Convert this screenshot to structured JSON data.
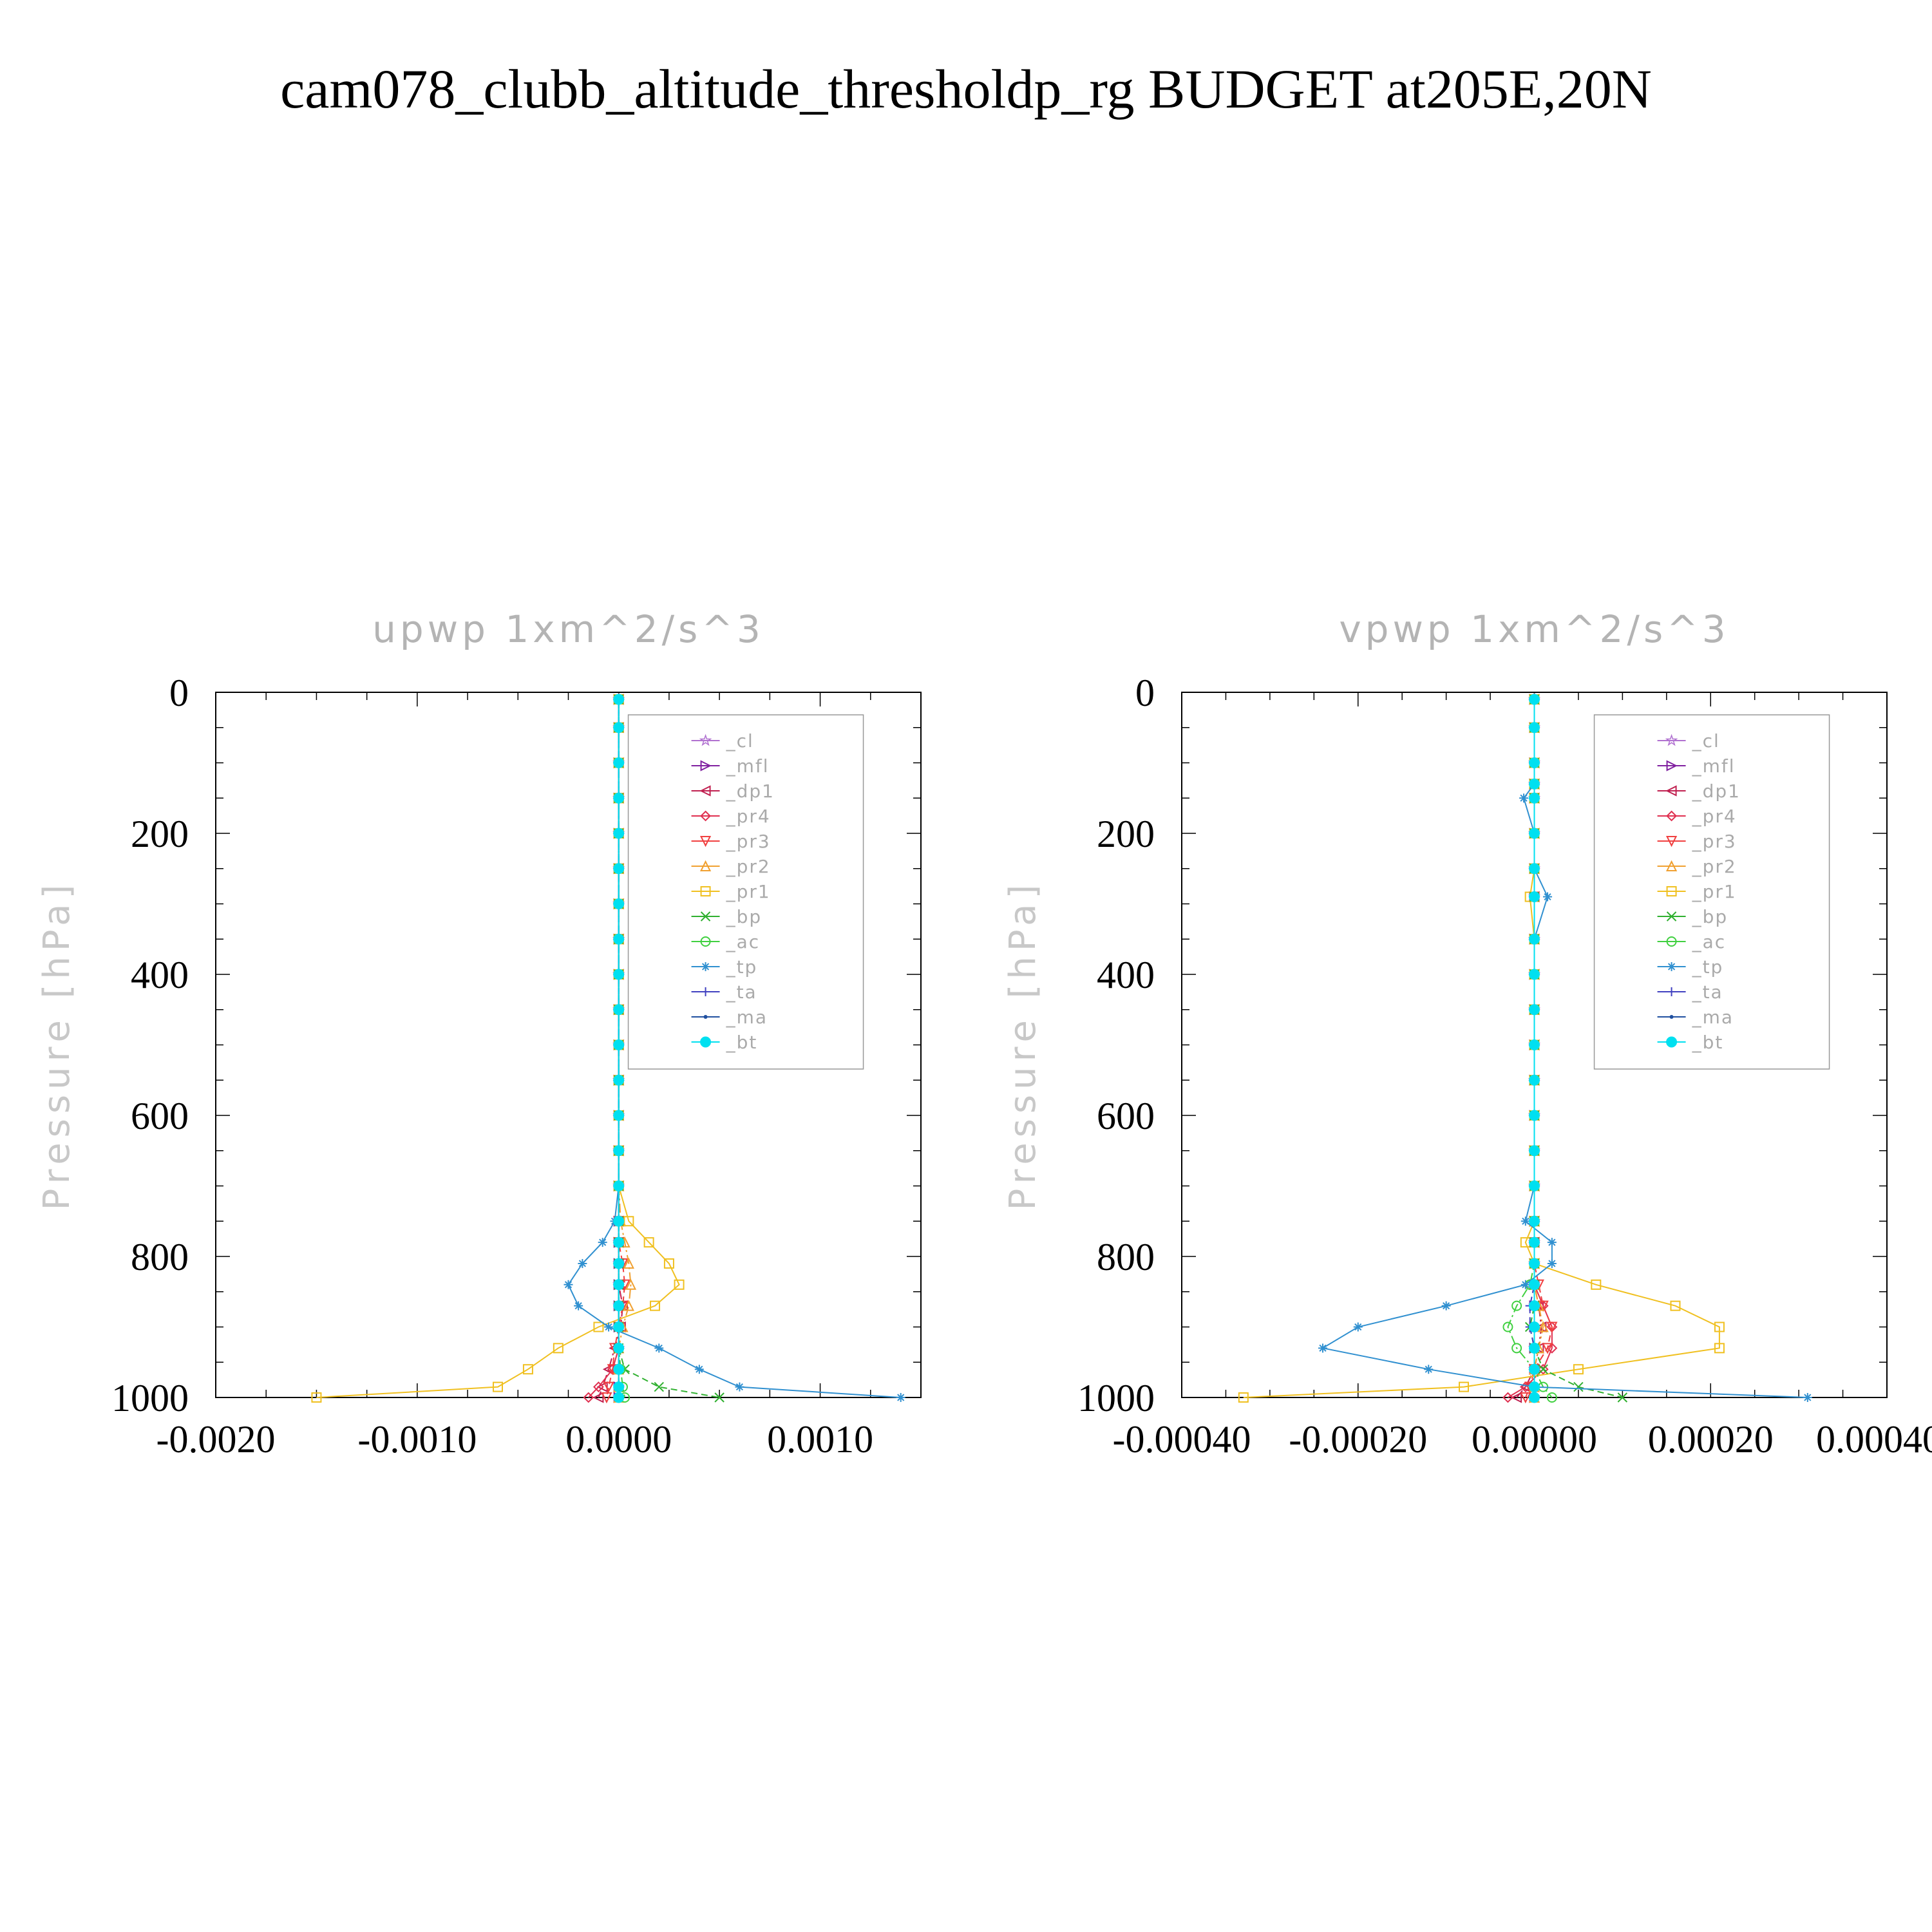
{
  "title": "cam078_clubb_altitude_thresholdp_rg  BUDGET at205E,20N",
  "legend_entries": [
    {
      "name": "_cl",
      "color": "#b070d0",
      "marker": "star"
    },
    {
      "name": "_mfl",
      "color": "#8020a0",
      "marker": "tri-right"
    },
    {
      "name": "_dp1",
      "color": "#c02050",
      "marker": "tri-left"
    },
    {
      "name": "_pr4",
      "color": "#e03050",
      "marker": "diamond"
    },
    {
      "name": "_pr3",
      "color": "#f04040",
      "marker": "tri-down"
    },
    {
      "name": "_pr2",
      "color": "#f0a030",
      "marker": "tri-up"
    },
    {
      "name": "_pr1",
      "color": "#f0c020",
      "marker": "square"
    },
    {
      "name": "_bp",
      "color": "#30b030",
      "marker": "x"
    },
    {
      "name": "_ac",
      "color": "#40d040",
      "marker": "circle"
    },
    {
      "name": "_tp",
      "color": "#3090d0",
      "marker": "asterisk"
    },
    {
      "name": "_ta",
      "color": "#4040c0",
      "marker": "plus"
    },
    {
      "name": "_ma",
      "color": "#2050a0",
      "marker": "dot"
    },
    {
      "name": "_bt",
      "color": "#00e0f0",
      "marker": "filled-circle"
    }
  ],
  "chart_data": [
    {
      "type": "line",
      "title": "upwp   1xm^2/s^3",
      "ylabel": "Pressure [hPa]",
      "xlim": [
        -0.002,
        0.0015
      ],
      "ylim": [
        1000,
        0
      ],
      "xticks": [
        -0.002,
        -0.001,
        0.0,
        0.001
      ],
      "xtick_labels": [
        "-0.0020",
        "-0.0010",
        "0.0000",
        "0.0010"
      ],
      "yticks": [
        0,
        200,
        400,
        600,
        800,
        1000
      ],
      "ytick_labels": [
        "0",
        "200",
        "400",
        "600",
        "800",
        "1000"
      ],
      "legend": "top-right",
      "y": [
        10,
        50,
        100,
        150,
        200,
        250,
        300,
        350,
        400,
        450,
        500,
        550,
        600,
        650,
        700,
        750,
        780,
        810,
        840,
        870,
        900,
        930,
        960,
        985,
        1000
      ],
      "series": [
        {
          "name": "_cl",
          "values": [
            0,
            0,
            0,
            0,
            0,
            0,
            0,
            0,
            0,
            0,
            0,
            0,
            0,
            0,
            0,
            0,
            0,
            0,
            0,
            0,
            0,
            0,
            0,
            0,
            0
          ]
        },
        {
          "name": "_mfl",
          "values": [
            0,
            0,
            0,
            0,
            0,
            0,
            0,
            0,
            0,
            0,
            0,
            0,
            0,
            0,
            0,
            0,
            0,
            0,
            0,
            0,
            0,
            0,
            0,
            0,
            0
          ]
        },
        {
          "name": "_dp1",
          "values": [
            0,
            0,
            0,
            0,
            0,
            0,
            0,
            0,
            0,
            0,
            0,
            0,
            0,
            0,
            0,
            0,
            0,
            0,
            0,
            2e-05,
            1e-05,
            -2e-05,
            -5e-05,
            -8e-05,
            -0.0001
          ]
        },
        {
          "name": "_pr4",
          "values": [
            0,
            0,
            0,
            0,
            0,
            0,
            0,
            0,
            0,
            0,
            0,
            0,
            0,
            0,
            0,
            0,
            0,
            0,
            0,
            0,
            0,
            0,
            -3e-05,
            -0.0001,
            -0.00015
          ]
        },
        {
          "name": "_pr3",
          "values": [
            0,
            0,
            0,
            0,
            0,
            0,
            0,
            0,
            0,
            0,
            0,
            0,
            0,
            0,
            0,
            0,
            0,
            2e-05,
            3e-05,
            2e-05,
            0,
            -2e-05,
            -3e-05,
            -5e-05,
            -6e-05
          ]
        },
        {
          "name": "_pr2",
          "values": [
            0,
            0,
            0,
            0,
            0,
            0,
            0,
            0,
            0,
            0,
            0,
            0,
            0,
            0,
            0,
            1e-05,
            3e-05,
            5e-05,
            6e-05,
            5e-05,
            2e-05,
            0,
            0,
            0,
            0
          ]
        },
        {
          "name": "_pr1",
          "values": [
            0,
            0,
            0,
            0,
            0,
            0,
            0,
            0,
            0,
            0,
            0,
            0,
            0,
            0,
            0,
            5e-05,
            0.00015,
            0.00025,
            0.0003,
            0.00018,
            -0.0001,
            -0.0003,
            -0.00045,
            -0.0006,
            -0.0015
          ]
        },
        {
          "name": "_bp",
          "values": [
            0,
            0,
            0,
            0,
            0,
            0,
            0,
            0,
            0,
            0,
            0,
            0,
            0,
            0,
            0,
            0,
            0,
            0,
            0,
            0,
            0,
            0,
            3e-05,
            0.0002,
            0.0005
          ]
        },
        {
          "name": "_ac",
          "values": [
            0,
            0,
            0,
            0,
            0,
            0,
            0,
            0,
            0,
            0,
            0,
            0,
            0,
            0,
            0,
            0,
            0,
            0,
            0,
            0,
            0,
            0,
            1e-05,
            2e-05,
            3e-05
          ]
        },
        {
          "name": "_tp",
          "values": [
            0,
            0,
            0,
            0,
            0,
            0,
            0,
            0,
            0,
            0,
            0,
            0,
            0,
            0,
            0,
            -2e-05,
            -8e-05,
            -0.00018,
            -0.00025,
            -0.0002,
            -5e-05,
            0.0002,
            0.0004,
            0.0006,
            0.0014
          ]
        },
        {
          "name": "_ta",
          "values": [
            0,
            0,
            0,
            0,
            0,
            0,
            0,
            0,
            0,
            0,
            0,
            0,
            0,
            0,
            0,
            0,
            0,
            0,
            0,
            0,
            0,
            0,
            0,
            0,
            0
          ]
        },
        {
          "name": "_ma",
          "values": [
            0,
            0,
            0,
            0,
            0,
            0,
            0,
            0,
            0,
            0,
            0,
            0,
            0,
            0,
            0,
            0,
            0,
            0,
            0,
            0,
            0,
            0,
            0,
            0,
            0
          ]
        },
        {
          "name": "_bt",
          "values": [
            0,
            0,
            0,
            0,
            0,
            0,
            0,
            0,
            0,
            0,
            0,
            0,
            0,
            0,
            0,
            0,
            0,
            0,
            0,
            0,
            0,
            0,
            0,
            0,
            0
          ]
        }
      ]
    },
    {
      "type": "line",
      "title": "vpwp   1xm^2/s^3",
      "ylabel": "Pressure [hPa]",
      "xlim": [
        -0.0004,
        0.0004
      ],
      "ylim": [
        1000,
        0
      ],
      "xticks": [
        -0.0004,
        -0.0002,
        0.0,
        0.0002,
        0.0004
      ],
      "xtick_labels": [
        "-0.00040",
        "-0.00020",
        "0.00000",
        "0.00020",
        "0.00040"
      ],
      "yticks": [
        0,
        200,
        400,
        600,
        800,
        1000
      ],
      "ytick_labels": [
        "0",
        "200",
        "400",
        "600",
        "800",
        "1000"
      ],
      "legend": "top-right",
      "y": [
        10,
        50,
        100,
        130,
        150,
        200,
        250,
        290,
        350,
        400,
        450,
        500,
        550,
        600,
        650,
        700,
        750,
        780,
        810,
        840,
        870,
        900,
        930,
        960,
        985,
        1000
      ],
      "series": [
        {
          "name": "_cl",
          "values": [
            0,
            0,
            0,
            0,
            0,
            0,
            0,
            0,
            0,
            0,
            0,
            0,
            0,
            0,
            0,
            0,
            0,
            0,
            0,
            0,
            0,
            0,
            0,
            0,
            0,
            0
          ]
        },
        {
          "name": "_mfl",
          "values": [
            0,
            0,
            0,
            0,
            0,
            0,
            0,
            0,
            0,
            0,
            0,
            0,
            0,
            0,
            0,
            0,
            0,
            0,
            0,
            0,
            0,
            0,
            0,
            0,
            0,
            0
          ]
        },
        {
          "name": "_dp1",
          "values": [
            0,
            0,
            0,
            0,
            0,
            0,
            0,
            0,
            0,
            0,
            0,
            0,
            0,
            0,
            0,
            0,
            0,
            0,
            0,
            0,
            5e-06,
            8e-06,
            5e-06,
            0,
            -1e-05,
            -2e-05
          ]
        },
        {
          "name": "_pr4",
          "values": [
            0,
            0,
            0,
            0,
            0,
            0,
            0,
            0,
            0,
            0,
            0,
            0,
            0,
            0,
            0,
            0,
            0,
            0,
            0,
            0,
            1e-05,
            2e-05,
            2e-05,
            1e-05,
            -1e-05,
            -3e-05
          ]
        },
        {
          "name": "_pr3",
          "values": [
            0,
            0,
            0,
            0,
            0,
            0,
            0,
            0,
            0,
            0,
            0,
            0,
            0,
            0,
            0,
            0,
            0,
            0,
            0,
            5e-06,
            1e-05,
            2e-05,
            1.5e-05,
            0,
            -5e-06,
            -1e-05
          ]
        },
        {
          "name": "_pr2",
          "values": [
            0,
            0,
            0,
            0,
            0,
            0,
            0,
            0,
            0,
            0,
            0,
            0,
            0,
            0,
            0,
            0,
            0,
            0,
            0,
            0,
            5e-06,
            1e-05,
            5e-06,
            0,
            0,
            0
          ]
        },
        {
          "name": "_pr1",
          "values": [
            0,
            0,
            0,
            0,
            0,
            0,
            0,
            -5e-06,
            0,
            0,
            0,
            0,
            0,
            0,
            0,
            0,
            0,
            -1e-05,
            0,
            7e-05,
            0.00016,
            0.00021,
            0.00021,
            5e-05,
            -8e-05,
            -0.00033
          ]
        },
        {
          "name": "_bp",
          "values": [
            0,
            0,
            0,
            0,
            0,
            0,
            0,
            0,
            0,
            0,
            0,
            0,
            0,
            0,
            0,
            0,
            0,
            0,
            0,
            0,
            0,
            -5e-06,
            0,
            1e-05,
            5e-05,
            0.0001
          ]
        },
        {
          "name": "_ac",
          "values": [
            0,
            0,
            0,
            0,
            0,
            0,
            0,
            0,
            0,
            0,
            0,
            0,
            0,
            0,
            0,
            0,
            0,
            0,
            0,
            -5e-06,
            -2e-05,
            -3e-05,
            -2e-05,
            0,
            1e-05,
            2e-05
          ]
        },
        {
          "name": "_tp",
          "values": [
            0,
            0,
            0,
            0,
            -1.2e-05,
            0,
            0,
            1.5e-05,
            0,
            0,
            0,
            0,
            0,
            0,
            0,
            0,
            -1e-05,
            2e-05,
            2e-05,
            -1e-05,
            -0.0001,
            -0.0002,
            -0.00024,
            -0.00012,
            0,
            0.00031
          ]
        },
        {
          "name": "_ta",
          "values": [
            0,
            0,
            0,
            0,
            0,
            0,
            0,
            0,
            0,
            0,
            0,
            0,
            0,
            0,
            0,
            0,
            0,
            0,
            0,
            0,
            -5e-06,
            -5e-06,
            0,
            0,
            0,
            0
          ]
        },
        {
          "name": "_ma",
          "values": [
            0,
            0,
            0,
            0,
            0,
            0,
            0,
            0,
            0,
            0,
            0,
            0,
            0,
            0,
            0,
            0,
            0,
            0,
            0,
            0,
            0,
            0,
            0,
            0,
            0,
            0
          ]
        },
        {
          "name": "_bt",
          "values": [
            0,
            0,
            0,
            0,
            0,
            0,
            0,
            0,
            0,
            0,
            0,
            0,
            0,
            0,
            0,
            0,
            0,
            0,
            0,
            0,
            0,
            0,
            0,
            0,
            0,
            0
          ]
        }
      ]
    }
  ]
}
